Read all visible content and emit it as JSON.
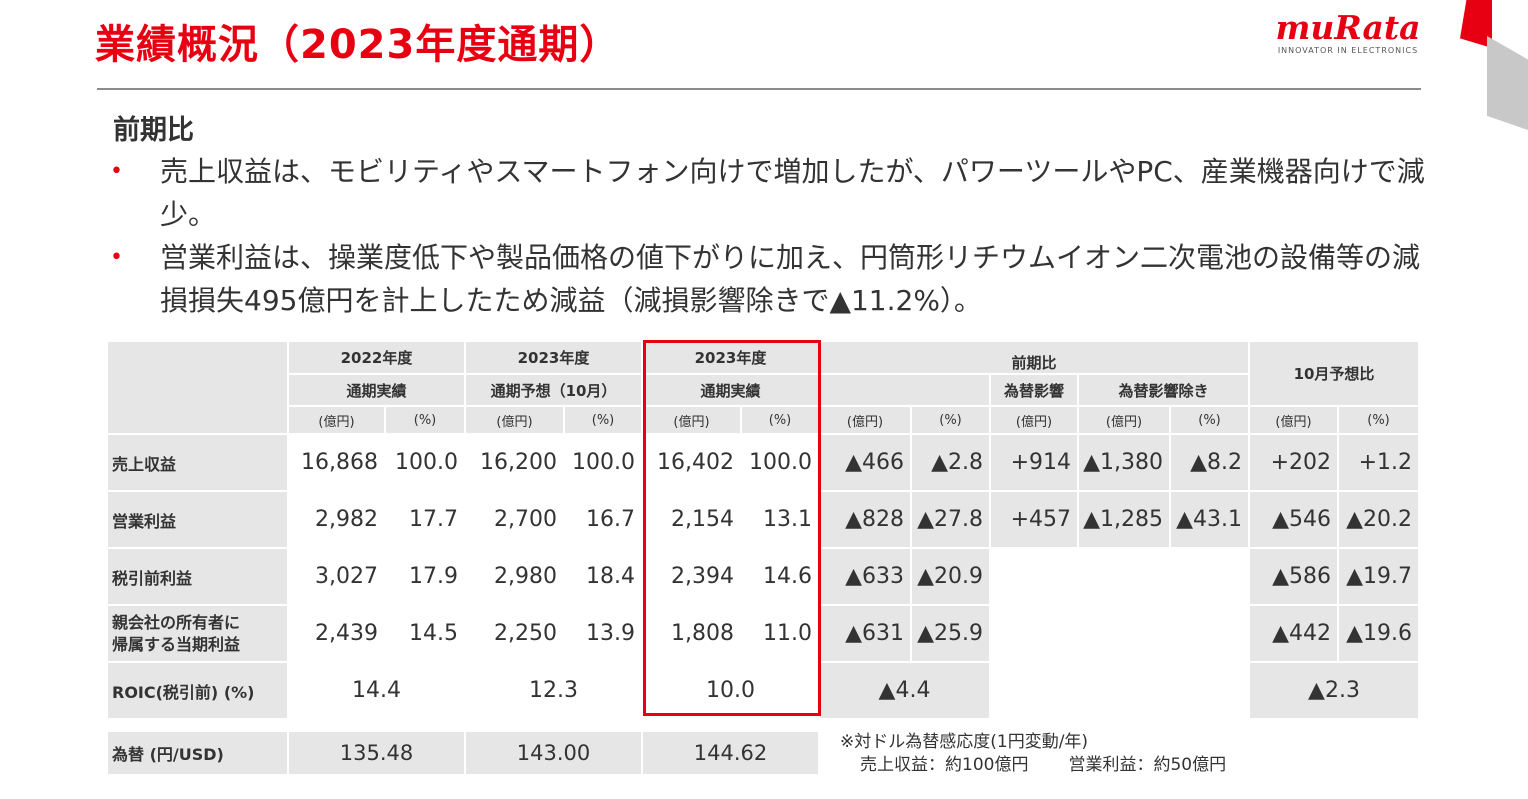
{
  "title": "業績概況（2023年度通期）",
  "logo": {
    "word": "muRata",
    "tagline": "INNOVATOR IN ELECTRONICS"
  },
  "subheading": "前期比",
  "bullets": [
    "売上収益は、モビリティやスマートフォン向けで増加したが、パワーツールやPC、産業機器向けで減少。",
    "営業利益は、操業度低下や製品価格の値下がりに加え、円筒形リチウムイオン二次電池の設備等の減損損失495億円を計上したため減益（減損影響除きで▲11.2%）。"
  ],
  "table": {
    "headers": {
      "fy2022_l1": "2022年度",
      "fy2022_l2": "通期実績",
      "fc_l1": "2023年度",
      "fc_l2": "通期予想（10月）",
      "fy2023_l1": "2023年度",
      "fy2023_l2": "通期実績",
      "yoy": "前期比",
      "fx_impact": "為替影響",
      "ex_fx": "為替影響除き",
      "vs_oct": "10月予想比",
      "unit_yen": "(億円)",
      "unit_pct": "(%)"
    },
    "rows": {
      "sales": {
        "label": "売上収益",
        "v": [
          "16,868",
          "100.0",
          "16,200",
          "100.0",
          "16,402",
          "100.0",
          "▲466",
          "▲2.8",
          "+914",
          "▲1,380",
          "▲8.2",
          "+202",
          "+1.2"
        ]
      },
      "op": {
        "label": "営業利益",
        "v": [
          "2,982",
          "17.7",
          "2,700",
          "16.7",
          "2,154",
          "13.1",
          "▲828",
          "▲27.8",
          "+457",
          "▲1,285",
          "▲43.1",
          "▲546",
          "▲20.2"
        ]
      },
      "pretax": {
        "label": "税引前利益",
        "v": [
          "3,027",
          "17.9",
          "2,980",
          "18.4",
          "2,394",
          "14.6",
          "▲633",
          "▲20.9",
          "▲586",
          "▲19.7"
        ]
      },
      "net": {
        "label1": "親会社の所有者に",
        "label2": "帰属する当期利益",
        "v": [
          "2,439",
          "14.5",
          "2,250",
          "13.9",
          "1,808",
          "11.0",
          "▲631",
          "▲25.9",
          "▲442",
          "▲19.6"
        ]
      },
      "roic": {
        "label": "ROIC(税引前) (%)",
        "v": [
          "14.4",
          "12.3",
          "10.0",
          "▲4.4",
          "▲2.3"
        ]
      }
    },
    "fx": {
      "label": "為替 (円/USD)",
      "v": [
        "135.48",
        "143.00",
        "144.62"
      ]
    }
  },
  "note": {
    "line1": "※対ドル為替感応度(1円変動/年)",
    "sales": "売上収益：約100億円",
    "op": "営業利益：約50億円"
  },
  "colors": {
    "accent": "#e60012",
    "cell": "#e6e6e6"
  }
}
